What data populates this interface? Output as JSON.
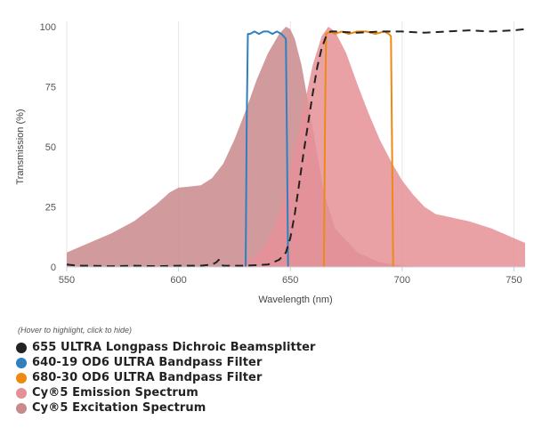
{
  "chart_data": {
    "type": "area",
    "title": "",
    "xlabel": "Wavelength (nm)",
    "ylabel": "Transmission (%)",
    "xlim": [
      550,
      755
    ],
    "ylim": [
      0,
      100
    ],
    "xticks": [
      550,
      600,
      650,
      700,
      750
    ],
    "yticks": [
      0,
      25,
      50,
      75,
      100
    ],
    "grid": "vertical",
    "legend_position": "bottom-left",
    "series": [
      {
        "name": "Cy®5 Excitation Spectrum",
        "kind": "area",
        "color": "#c98a8d",
        "x": [
          550,
          560,
          570,
          580,
          590,
          596,
          600,
          605,
          610,
          615,
          620,
          625,
          630,
          635,
          640,
          645,
          648,
          650,
          652,
          655,
          660,
          665,
          670,
          680,
          690,
          700,
          710
        ],
        "y": [
          6,
          10,
          14,
          19,
          26,
          31,
          33,
          33.5,
          34,
          37,
          43,
          53,
          65,
          78,
          89,
          97,
          100,
          99,
          95,
          84,
          58,
          31,
          16,
          6,
          2,
          0.5,
          0
        ]
      },
      {
        "name": "Cy®5 Emission Spectrum",
        "kind": "area",
        "color": "#e59096",
        "x": [
          620,
          630,
          635,
          640,
          645,
          650,
          655,
          660,
          664,
          667,
          670,
          675,
          680,
          685,
          690,
          695,
          700,
          705,
          710,
          715,
          720,
          730,
          740,
          750,
          755
        ],
        "y": [
          0,
          2,
          5,
          11,
          22,
          40,
          62,
          84,
          96,
          100,
          98,
          89,
          76,
          64,
          53,
          44,
          36,
          30,
          25,
          22,
          21,
          19,
          16,
          12,
          10
        ]
      },
      {
        "name": "640-19 OD6 ULTRA Bandpass Filter",
        "kind": "line",
        "color": "#2f7fc1",
        "x": [
          630,
          630.5,
          631,
          632,
          634,
          636,
          638,
          640,
          642,
          644,
          646,
          647,
          648,
          648.5,
          649
        ],
        "y": [
          0,
          60,
          97,
          97,
          98,
          97,
          98,
          98,
          97,
          98,
          97,
          96,
          95,
          50,
          0
        ]
      },
      {
        "name": "680-30 OD6 ULTRA Bandpass Filter",
        "kind": "line",
        "color": "#ee8a12",
        "x": [
          665,
          665.5,
          666,
          668,
          670,
          673,
          676,
          680,
          684,
          688,
          692,
          694,
          695,
          695.5,
          696
        ],
        "y": [
          0,
          60,
          97,
          98,
          97,
          98,
          97,
          98,
          98,
          97,
          98,
          97,
          96,
          50,
          0
        ]
      },
      {
        "name": "655 ULTRA Longpass Dichroic Beamsplitter",
        "kind": "dashed-line",
        "color": "#222222",
        "x": [
          550,
          555,
          560,
          570,
          580,
          590,
          600,
          610,
          615,
          617,
          618,
          619,
          620,
          630,
          640,
          645,
          648,
          650,
          652,
          654,
          656,
          658,
          660,
          662,
          664,
          666,
          668,
          670,
          680,
          690,
          700,
          710,
          720,
          730,
          740,
          750,
          755
        ],
        "y": [
          1,
          0.5,
          0.5,
          0.3,
          0.5,
          0.3,
          0.5,
          0.5,
          1,
          2,
          3,
          1,
          0.5,
          0.5,
          1,
          3,
          6,
          12,
          22,
          35,
          48,
          60,
          72,
          83,
          91,
          96,
          98,
          98,
          97.5,
          98,
          98,
          97.5,
          98,
          98.5,
          98,
          98.5,
          99
        ]
      }
    ]
  },
  "legend": {
    "hint": "(Hover to highlight, click to hide)",
    "items": [
      {
        "label": "655 ULTRA Longpass Dichroic Beamsplitter",
        "color": "#222222"
      },
      {
        "label": "640-19 OD6 ULTRA Bandpass Filter",
        "color": "#2f7fc1"
      },
      {
        "label": "680-30 OD6 ULTRA Bandpass Filter",
        "color": "#ee8a12"
      },
      {
        "label": "Cy®5 Emission Spectrum",
        "color": "#e59096"
      },
      {
        "label": "Cy®5 Excitation Spectrum",
        "color": "#c98a8d"
      }
    ]
  }
}
